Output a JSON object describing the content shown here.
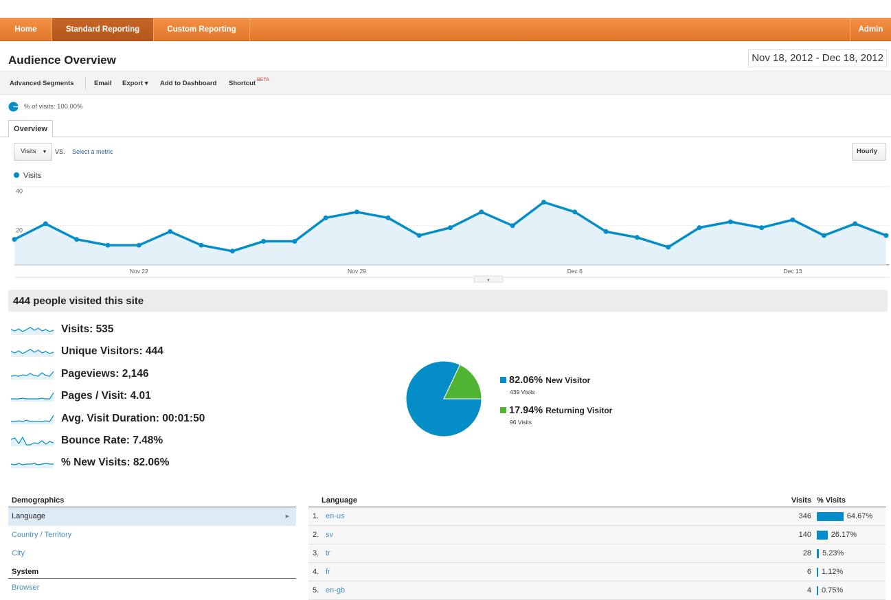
{
  "nav": {
    "tabs": [
      "Home",
      "Standard Reporting",
      "Custom Reporting"
    ],
    "right": "Admin",
    "active": "Standard Reporting"
  },
  "header": {
    "title": "Audience Overview",
    "date_range": "Nov 18, 2012 - Dec 18, 2012"
  },
  "toolbar": {
    "advanced_segments": "Advanced Segments",
    "email": "Email",
    "export": "Export ▾",
    "add_to_dashboard": "Add to Dashboard",
    "shortcut": "Shortcut",
    "beta": "BETA"
  },
  "segment": {
    "label": "% of visits: 100.00%"
  },
  "tabs": {
    "overview": "Overview"
  },
  "controls": {
    "metric": "Visits",
    "vs": "VS.",
    "select_metric": "Select a metric",
    "hourly": "Hourly"
  },
  "colors": {
    "accent": "#058dc7",
    "returning": "#50b432",
    "nav": "#ee8434"
  },
  "chart_data": {
    "type": "area",
    "series": [
      {
        "name": "Visits",
        "values": [
          13,
          21,
          13,
          10,
          10,
          17,
          10,
          7,
          12,
          12,
          24,
          27,
          24,
          15,
          19,
          27,
          20,
          32,
          27,
          17,
          14,
          9,
          19,
          22,
          19,
          23,
          15,
          21,
          15
        ]
      }
    ],
    "x_start": "Nov 18",
    "x_tick_labels": [
      "Nov 22",
      "Nov 29",
      "Dec 6",
      "Dec 13"
    ],
    "y_tick_labels": [
      "20",
      "40"
    ],
    "ylim": [
      0,
      40
    ],
    "grid": true,
    "legend": "top-left"
  },
  "summary": {
    "headline": "444 people visited this site",
    "metrics": [
      {
        "label": "Visits:",
        "value": "535"
      },
      {
        "label": "Unique Visitors:",
        "value": "444"
      },
      {
        "label": "Pageviews:",
        "value": "2,146"
      },
      {
        "label": "Pages / Visit:",
        "value": "4.01"
      },
      {
        "label": "Avg. Visit Duration:",
        "value": "00:01:50"
      },
      {
        "label": "Bounce Rate:",
        "value": "7.48%"
      },
      {
        "label": "% New Visits:",
        "value": "82.06%"
      }
    ]
  },
  "pie": {
    "slices": [
      {
        "pct": "82.06%",
        "label": "New Visitor",
        "visits": "439 Visits",
        "value": 82.06
      },
      {
        "pct": "17.94%",
        "label": "Returning Visitor",
        "visits": "96 Visits",
        "value": 17.94
      }
    ]
  },
  "demographics": {
    "title": "Demographics",
    "items": [
      "Language",
      "Country / Territory",
      "City"
    ],
    "system_title": "System",
    "system_items": [
      "Browser"
    ]
  },
  "language_table": {
    "col_language": "Language",
    "col_visits": "Visits",
    "col_pct": "% Visits",
    "rows": [
      {
        "rank": "1.",
        "lang": "en-us",
        "visits": "346",
        "pct": "64.67%",
        "frac": 0.6467
      },
      {
        "rank": "2.",
        "lang": "sv",
        "visits": "140",
        "pct": "26.17%",
        "frac": 0.2617
      },
      {
        "rank": "3.",
        "lang": "tr",
        "visits": "28",
        "pct": "5.23%",
        "frac": 0.0523
      },
      {
        "rank": "4.",
        "lang": "fr",
        "visits": "6",
        "pct": "1.12%",
        "frac": 0.0112
      },
      {
        "rank": "5.",
        "lang": "en-gb",
        "visits": "4",
        "pct": "0.75%",
        "frac": 0.0075
      }
    ]
  }
}
